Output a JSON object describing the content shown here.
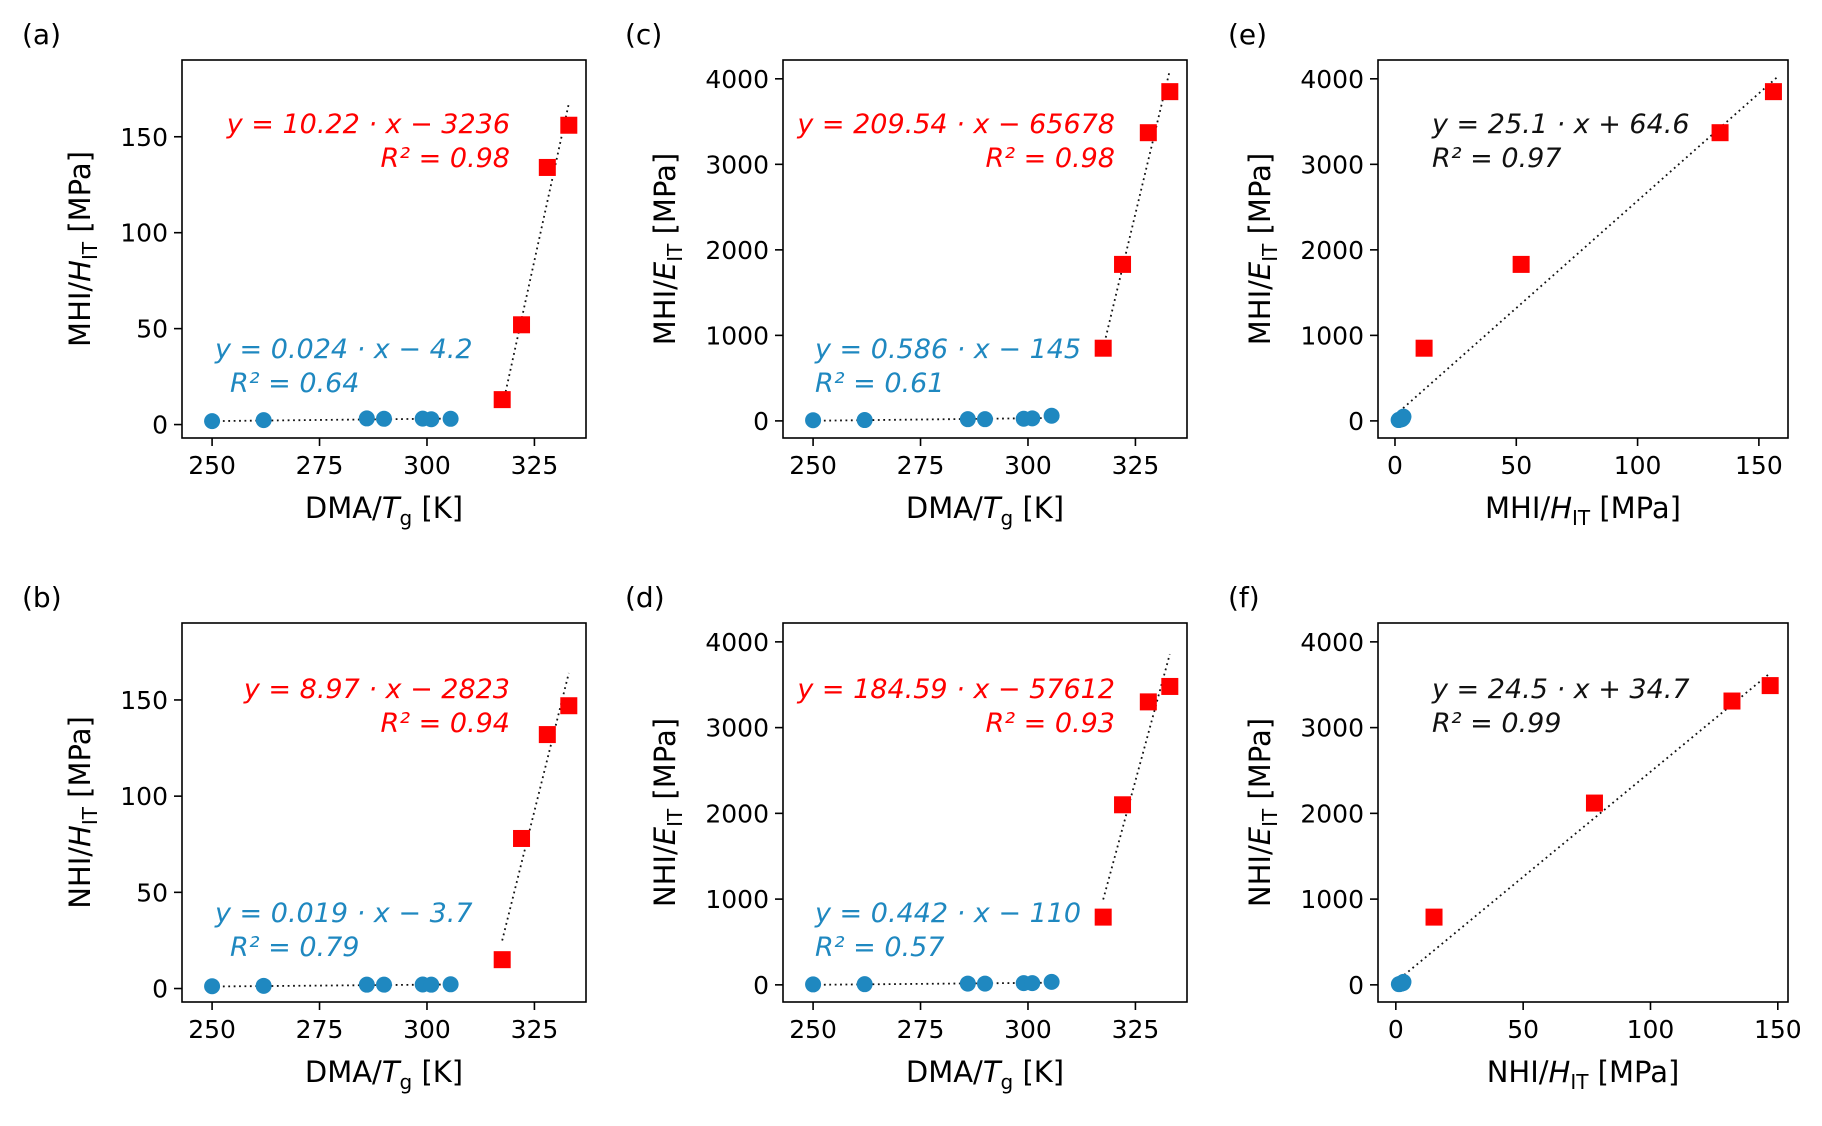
{
  "colors": {
    "blue": "#1f88c0",
    "red": "#ff0000",
    "black": "#111111"
  },
  "chart_data": [
    {
      "panel": "(a)",
      "type": "scatter",
      "xlabel": "DMA/Tg [K]",
      "xlabel_main": "DMA/",
      "xlabel_var": "T",
      "xlabel_sub": "g",
      "xlabel_unit": "[K]",
      "ylabel": "MHI/HIT [MPa]",
      "ylabel_pre": "MHI/",
      "ylabel_var": "H",
      "ylabel_sub": "IT",
      "ylabel_unit": "[MPa]",
      "xlim": [
        243,
        337
      ],
      "ylim": [
        -7,
        190
      ],
      "xticks": [
        250,
        275,
        300,
        325
      ],
      "yticks": [
        0,
        50,
        100,
        150
      ],
      "series": [
        {
          "name": "blue",
          "marker": "circle",
          "x": [
            250,
            262,
            286,
            290,
            299,
            301,
            305.5
          ],
          "y": [
            1.8,
            2.3,
            3.2,
            3.0,
            3.1,
            2.8,
            3.0
          ]
        },
        {
          "name": "red",
          "marker": "square",
          "x": [
            317.5,
            322,
            328,
            333
          ],
          "y": [
            13,
            52,
            134,
            156
          ]
        }
      ],
      "fits": [
        {
          "name": "blue-fit",
          "slope": 0.024,
          "intercept": -4.2,
          "x_range": [
            250,
            305.5
          ]
        },
        {
          "name": "red-fit",
          "slope": 10.22,
          "intercept": -3236,
          "x_range": [
            317.5,
            333
          ]
        }
      ],
      "annotations": [
        {
          "color": "blue",
          "eq": "y = 0.024 · x − 4.2",
          "r2": "R² = 0.64"
        },
        {
          "color": "red",
          "eq": "y = 10.22 · x − 3236",
          "r2": "R² = 0.98"
        }
      ]
    },
    {
      "panel": "(b)",
      "type": "scatter",
      "xlabel": "DMA/Tg [K]",
      "xlabel_main": "DMA/",
      "xlabel_var": "T",
      "xlabel_sub": "g",
      "xlabel_unit": "[K]",
      "ylabel": "NHI/HIT [MPa]",
      "ylabel_pre": "NHI/",
      "ylabel_var": "H",
      "ylabel_sub": "IT",
      "ylabel_unit": "[MPa]",
      "xlim": [
        243,
        337
      ],
      "ylim": [
        -7,
        190
      ],
      "xticks": [
        250,
        275,
        300,
        325
      ],
      "yticks": [
        0,
        50,
        100,
        150
      ],
      "series": [
        {
          "name": "blue",
          "marker": "circle",
          "x": [
            250,
            262,
            286,
            290,
            299,
            301,
            305.5
          ],
          "y": [
            1.2,
            1.4,
            2.0,
            2.0,
            2.1,
            2.0,
            2.2
          ]
        },
        {
          "name": "red",
          "marker": "square",
          "x": [
            317.5,
            322,
            328,
            333
          ],
          "y": [
            15,
            78,
            132,
            147
          ]
        }
      ],
      "fits": [
        {
          "name": "blue-fit",
          "slope": 0.019,
          "intercept": -3.7,
          "x_range": [
            250,
            305.5
          ]
        },
        {
          "name": "red-fit",
          "slope": 8.97,
          "intercept": -2823,
          "x_range": [
            317.5,
            333
          ]
        }
      ],
      "annotations": [
        {
          "color": "blue",
          "eq": "y = 0.019 · x − 3.7",
          "r2": "R² = 0.79"
        },
        {
          "color": "red",
          "eq": "y = 8.97 · x − 2823",
          "r2": "R² = 0.94"
        }
      ]
    },
    {
      "panel": "(c)",
      "type": "scatter",
      "xlabel": "DMA/Tg [K]",
      "xlabel_main": "DMA/",
      "xlabel_var": "T",
      "xlabel_sub": "g",
      "xlabel_unit": "[K]",
      "ylabel": "MHI/EIT [MPa]",
      "ylabel_pre": "MHI/",
      "ylabel_var": "E",
      "ylabel_sub": "IT",
      "ylabel_unit": "[MPa]",
      "xlim": [
        243,
        337
      ],
      "ylim": [
        -200,
        4220
      ],
      "xticks": [
        250,
        275,
        300,
        325
      ],
      "yticks": [
        0,
        1000,
        2000,
        3000,
        4000
      ],
      "series": [
        {
          "name": "blue",
          "marker": "circle",
          "x": [
            250,
            262,
            286,
            290,
            299,
            301,
            305.5
          ],
          "y": [
            8,
            10,
            20,
            20,
            25,
            30,
            60
          ]
        },
        {
          "name": "red",
          "marker": "square",
          "x": [
            317.5,
            322,
            328,
            333
          ],
          "y": [
            850,
            1830,
            3370,
            3850
          ]
        }
      ],
      "fits": [
        {
          "name": "blue-fit",
          "slope": 0.586,
          "intercept": -145,
          "x_range": [
            250,
            305.5
          ]
        },
        {
          "name": "red-fit",
          "slope": 209.54,
          "intercept": -65678,
          "x_range": [
            317.5,
            333
          ]
        }
      ],
      "annotations": [
        {
          "color": "blue",
          "eq": "y = 0.586 · x − 145",
          "r2": "R² = 0.61"
        },
        {
          "color": "red",
          "eq": "y = 209.54 · x − 65678",
          "r2": "R² = 0.98"
        }
      ]
    },
    {
      "panel": "(d)",
      "type": "scatter",
      "xlabel": "DMA/Tg [K]",
      "xlabel_main": "DMA/",
      "xlabel_var": "T",
      "xlabel_sub": "g",
      "xlabel_unit": "[K]",
      "ylabel": "NHI/EIT [MPa]",
      "ylabel_pre": "NHI/",
      "ylabel_var": "E",
      "ylabel_sub": "IT",
      "ylabel_unit": "[MPa]",
      "xlim": [
        243,
        337
      ],
      "ylim": [
        -200,
        4220
      ],
      "xticks": [
        250,
        275,
        300,
        325
      ],
      "yticks": [
        0,
        1000,
        2000,
        3000,
        4000
      ],
      "series": [
        {
          "name": "blue",
          "marker": "circle",
          "x": [
            250,
            262,
            286,
            290,
            299,
            301,
            305.5
          ],
          "y": [
            5,
            8,
            15,
            15,
            20,
            20,
            35
          ]
        },
        {
          "name": "red",
          "marker": "square",
          "x": [
            317.5,
            322,
            328,
            333
          ],
          "y": [
            790,
            2100,
            3300,
            3480
          ]
        }
      ],
      "fits": [
        {
          "name": "blue-fit",
          "slope": 0.442,
          "intercept": -110,
          "x_range": [
            250,
            305.5
          ]
        },
        {
          "name": "red-fit",
          "slope": 184.59,
          "intercept": -57612,
          "x_range": [
            317.5,
            333
          ]
        }
      ],
      "annotations": [
        {
          "color": "blue",
          "eq": "y = 0.442 · x − 110",
          "r2": "R² = 0.57"
        },
        {
          "color": "red",
          "eq": "y = 184.59 · x − 57612",
          "r2": "R² = 0.93"
        }
      ]
    },
    {
      "panel": "(e)",
      "type": "scatter",
      "xlabel": "MHI/HIT [MPa]",
      "xlabel_main": "MHI/",
      "xlabel_var": "H",
      "xlabel_sub": "IT",
      "xlabel_unit": "[MPa]",
      "ylabel": "MHI/EIT [MPa]",
      "ylabel_pre": "MHI/",
      "ylabel_var": "E",
      "ylabel_sub": "IT",
      "ylabel_unit": "[MPa]",
      "xlim": [
        -7,
        162
      ],
      "ylim": [
        -200,
        4220
      ],
      "xticks": [
        0,
        50,
        100,
        150
      ],
      "yticks": [
        0,
        1000,
        2000,
        3000,
        4000
      ],
      "series": [
        {
          "name": "blue",
          "marker": "circle",
          "x": [
            1.5,
            2,
            2.5,
            2.8,
            3,
            3.2,
            3.5
          ],
          "y": [
            10,
            15,
            20,
            20,
            25,
            30,
            50
          ]
        },
        {
          "name": "red",
          "marker": "square",
          "x": [
            12,
            52,
            134,
            156
          ],
          "y": [
            850,
            1830,
            3370,
            3850
          ]
        }
      ],
      "fits": [
        {
          "name": "black-fit",
          "slope": 25.1,
          "intercept": 64.6,
          "x_range": [
            0,
            158
          ]
        }
      ],
      "annotations": [
        {
          "color": "black",
          "eq": "y = 25.1 · x + 64.6",
          "r2": "R² = 0.97"
        }
      ]
    },
    {
      "panel": "(f)",
      "type": "scatter",
      "xlabel": "NHI/HIT [MPa]",
      "xlabel_main": "NHI/",
      "xlabel_var": "H",
      "xlabel_sub": "IT",
      "xlabel_unit": "[MPa]",
      "ylabel": "NHI/EIT [MPa]",
      "ylabel_pre": "NHI/",
      "ylabel_var": "E",
      "ylabel_sub": "IT",
      "ylabel_unit": "[MPa]",
      "xlim": [
        -7,
        154
      ],
      "ylim": [
        -200,
        4220
      ],
      "xticks": [
        0,
        50,
        100,
        150
      ],
      "yticks": [
        0,
        1000,
        2000,
        3000,
        4000
      ],
      "series": [
        {
          "name": "blue",
          "marker": "circle",
          "x": [
            1.2,
            1.5,
            2,
            2.2,
            2.5,
            2.8,
            3
          ],
          "y": [
            8,
            10,
            15,
            15,
            20,
            20,
            35
          ]
        },
        {
          "name": "red",
          "marker": "square",
          "x": [
            15,
            78,
            132,
            147
          ],
          "y": [
            790,
            2120,
            3310,
            3490
          ]
        }
      ],
      "fits": [
        {
          "name": "black-fit",
          "slope": 24.5,
          "intercept": 34.7,
          "x_range": [
            0,
            147
          ]
        }
      ],
      "annotations": [
        {
          "color": "black",
          "eq": "y = 24.5 · x + 34.7",
          "r2": "R² = 0.99"
        }
      ]
    }
  ]
}
